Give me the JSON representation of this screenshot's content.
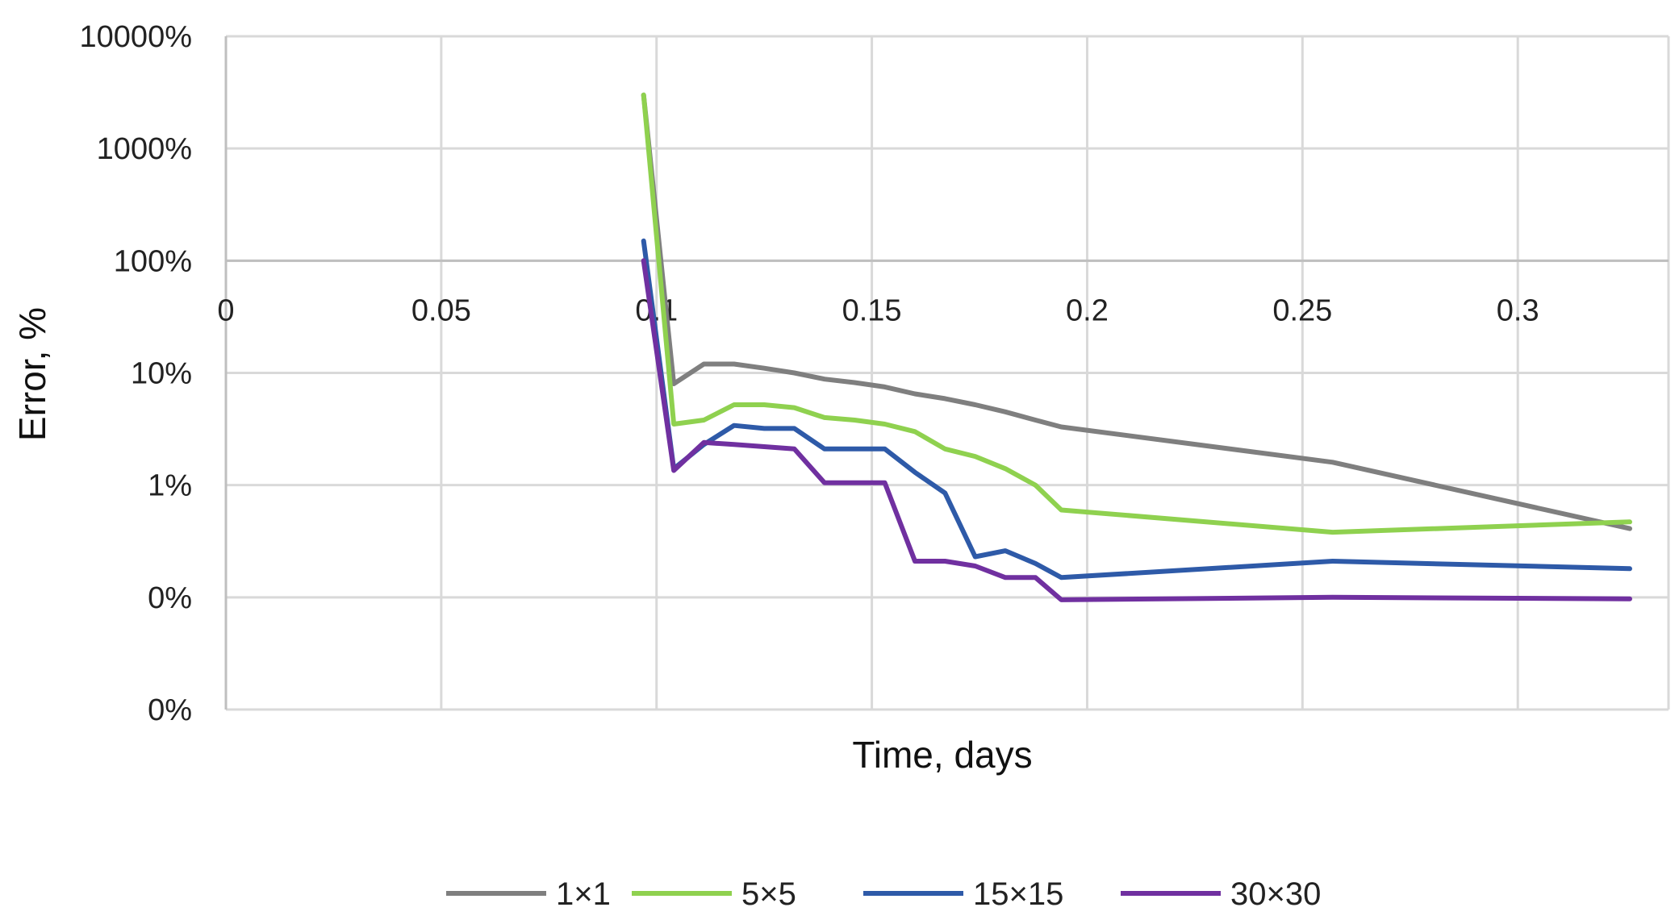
{
  "chart_data": {
    "type": "line",
    "title": "",
    "xlabel": "Time, days",
    "ylabel": "Error, %",
    "x_scale": "linear",
    "y_scale": "log",
    "xlim": [
      0,
      0.335
    ],
    "ylim": [
      0.01,
      10000
    ],
    "x_ticks": [
      0,
      0.05,
      0.1,
      0.15,
      0.2,
      0.25,
      0.3
    ],
    "x_tick_labels": [
      "0",
      "0.05",
      "0.1",
      "0.15",
      "0.2",
      "0.25",
      "0.3"
    ],
    "x_axis_crosses_y_at": 100,
    "y_ticks": [
      10000,
      1000,
      100,
      10,
      1,
      0.1,
      0.01
    ],
    "y_tick_labels": [
      "10000%",
      "1000%",
      "100%",
      "10%",
      "1%",
      "0%",
      "0%"
    ],
    "grid": true,
    "legend_position": "bottom",
    "series": [
      {
        "name": "1×1",
        "color": "#7f7f7f",
        "x": [
          0.097,
          0.104,
          0.111,
          0.118,
          0.125,
          0.132,
          0.139,
          0.146,
          0.153,
          0.16,
          0.167,
          0.174,
          0.181,
          0.188,
          0.194,
          0.257,
          0.326
        ],
        "y": [
          3000,
          8,
          12,
          12,
          11,
          10,
          8.8,
          8.2,
          7.5,
          6.5,
          5.9,
          5.2,
          4.5,
          3.8,
          3.3,
          1.6,
          0.41
        ]
      },
      {
        "name": "5×5",
        "color": "#8fd14f",
        "x": [
          0.097,
          0.104,
          0.111,
          0.118,
          0.125,
          0.132,
          0.139,
          0.146,
          0.153,
          0.16,
          0.167,
          0.174,
          0.181,
          0.188,
          0.194,
          0.257,
          0.326
        ],
        "y": [
          3000,
          3.5,
          3.8,
          5.2,
          5.2,
          4.9,
          4,
          3.8,
          3.5,
          3,
          2.1,
          1.8,
          1.4,
          1,
          0.6,
          0.38,
          0.47
        ]
      },
      {
        "name": "15×15",
        "color": "#2e5aa8",
        "x": [
          0.097,
          0.104,
          0.111,
          0.118,
          0.125,
          0.132,
          0.139,
          0.146,
          0.153,
          0.16,
          0.167,
          0.174,
          0.181,
          0.188,
          0.194,
          0.257,
          0.326
        ],
        "y": [
          150,
          1.4,
          2.3,
          3.4,
          3.2,
          3.2,
          2.1,
          2.1,
          2.1,
          1.3,
          0.85,
          0.23,
          0.26,
          0.2,
          0.15,
          0.21,
          0.18
        ]
      },
      {
        "name": "30×30",
        "color": "#7030a0",
        "x": [
          0.097,
          0.104,
          0.111,
          0.118,
          0.125,
          0.132,
          0.139,
          0.146,
          0.153,
          0.16,
          0.167,
          0.174,
          0.181,
          0.188,
          0.194,
          0.257,
          0.326
        ],
        "y": [
          100,
          1.35,
          2.4,
          2.3,
          2.2,
          2.1,
          1.05,
          1.05,
          1.05,
          0.21,
          0.21,
          0.19,
          0.15,
          0.15,
          0.095,
          0.1,
          0.097
        ]
      }
    ]
  }
}
